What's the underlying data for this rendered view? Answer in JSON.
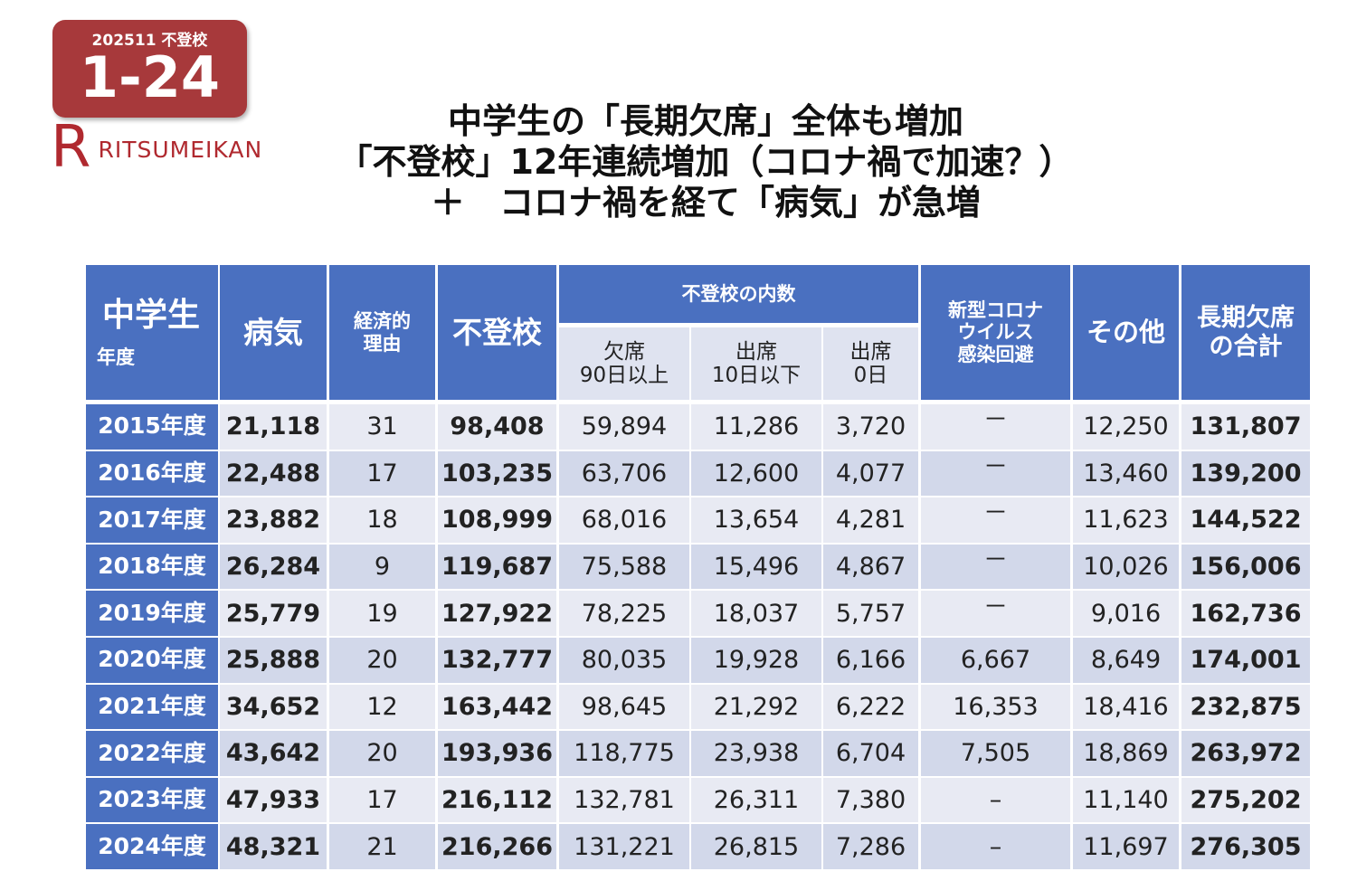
{
  "badge": {
    "code": "202511 不登校",
    "number": "1-24"
  },
  "logo": {
    "mark": "R",
    "text": "RITSUMEIKAN"
  },
  "title": [
    "中学生の「長期欠席」全体も増加",
    "「不登校」12年連続増加（コロナ禍で加速？）",
    "＋　コロナ禍を経て「病気」が急増"
  ],
  "table": {
    "corner": {
      "title": "中学生",
      "subtitle": "年度"
    },
    "columns": [
      [
        "病気"
      ],
      [
        "経済的",
        "理由"
      ],
      [
        "不登校"
      ],
      null,
      null,
      null,
      [
        "新型コロナ",
        "ウイルス",
        "感染回避"
      ],
      [
        "その他"
      ],
      [
        "長期欠席",
        "の合計"
      ]
    ],
    "group": {
      "label": "不登校の内数",
      "subs": [
        [
          "欠席",
          "90日以上"
        ],
        [
          "出席",
          "10日以下"
        ],
        [
          "出席",
          "0日"
        ]
      ]
    },
    "rows": [
      [
        "2015年度",
        "21,118",
        "31",
        "98,408",
        "59,894",
        "11,286",
        "3,720",
        "－",
        "12,250",
        "131,807"
      ],
      [
        "2016年度",
        "22,488",
        "17",
        "103,235",
        "63,706",
        "12,600",
        "4,077",
        "－",
        "13,460",
        "139,200"
      ],
      [
        "2017年度",
        "23,882",
        "18",
        "108,999",
        "68,016",
        "13,654",
        "4,281",
        "－",
        "11,623",
        "144,522"
      ],
      [
        "2018年度",
        "26,284",
        "9",
        "119,687",
        "75,588",
        "15,496",
        "4,867",
        "－",
        "10,026",
        "156,006"
      ],
      [
        "2019年度",
        "25,779",
        "19",
        "127,922",
        "78,225",
        "18,037",
        "5,757",
        "－",
        "9,016",
        "162,736"
      ],
      [
        "2020年度",
        "25,888",
        "20",
        "132,777",
        "80,035",
        "19,928",
        "6,166",
        "6,667",
        "8,649",
        "174,001"
      ],
      [
        "2021年度",
        "34,652",
        "12",
        "163,442",
        "98,645",
        "21,292",
        "6,222",
        "16,353",
        "18,416",
        "232,875"
      ],
      [
        "2022年度",
        "43,642",
        "20",
        "193,936",
        "118,775",
        "23,938",
        "6,704",
        "7,505",
        "18,869",
        "263,972"
      ],
      [
        "2023年度",
        "47,933",
        "17",
        "216,112",
        "132,781",
        "26,311",
        "7,380",
        "–",
        "11,140",
        "275,202"
      ],
      [
        "2024年度",
        "48,321",
        "21",
        "216,266",
        "131,221",
        "26,815",
        "7,286",
        "–",
        "11,697",
        "276,305"
      ]
    ]
  }
}
